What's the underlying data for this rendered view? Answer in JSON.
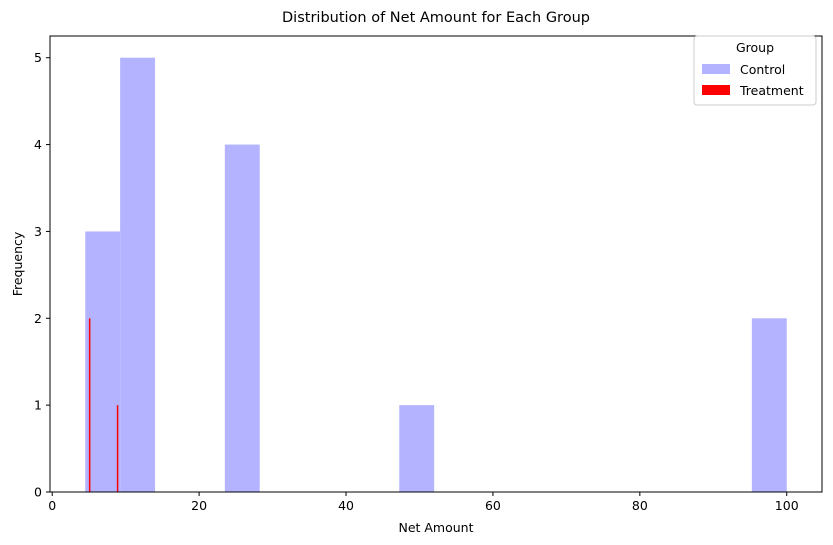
{
  "chart_data": {
    "type": "bar",
    "title": "Distribution of Net Amount for Each Group",
    "xlabel": "Net Amount",
    "ylabel": "Frequency",
    "xlim": [
      -0.3,
      104.8
    ],
    "ylim": [
      0,
      5.25
    ],
    "xticks": [
      0,
      20,
      40,
      60,
      80,
      100
    ],
    "yticks": [
      0,
      1,
      2,
      3,
      4,
      5
    ],
    "legend": {
      "title": "Group",
      "placement": "top-right"
    },
    "series": [
      {
        "name": "Control",
        "color": "#b3b3ff",
        "bins": [
          {
            "x0": 4.5,
            "x1": 9.25,
            "count": 3
          },
          {
            "x0": 9.25,
            "x1": 14.0,
            "count": 5
          },
          {
            "x0": 23.5,
            "x1": 28.25,
            "count": 4
          },
          {
            "x0": 47.25,
            "x1": 52.0,
            "count": 1
          },
          {
            "x0": 95.25,
            "x1": 100.0,
            "count": 2
          }
        ]
      },
      {
        "name": "Treatment",
        "color": "#ff0000",
        "bins": [
          {
            "x0": 5.0,
            "x1": 5.2,
            "count": 2
          },
          {
            "x0": 8.8,
            "x1": 9.0,
            "count": 1
          }
        ]
      }
    ]
  }
}
